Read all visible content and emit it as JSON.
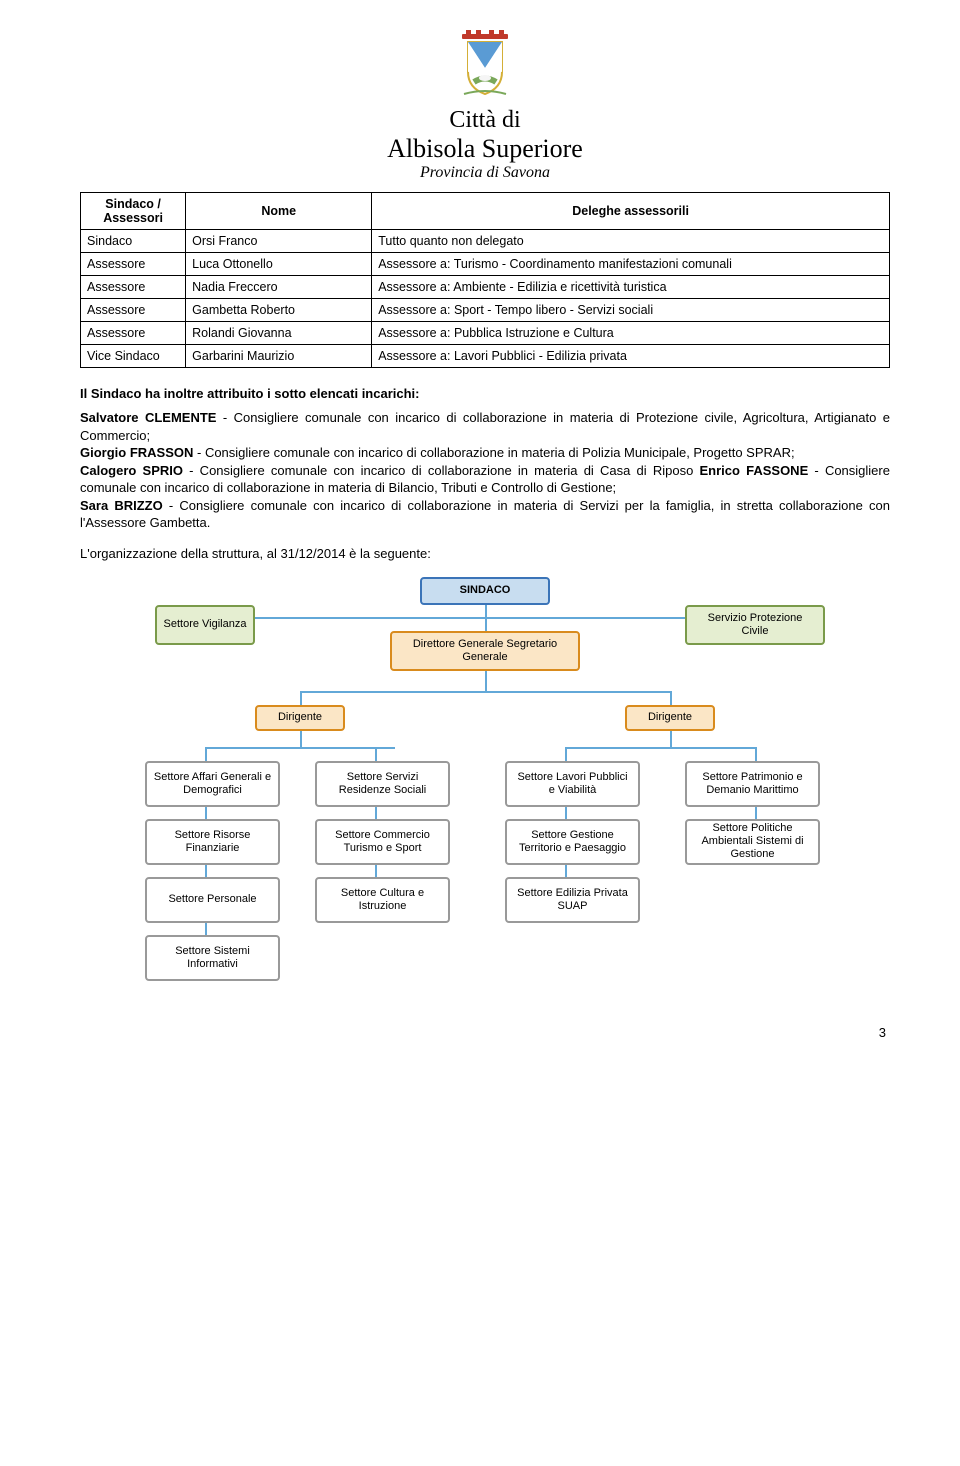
{
  "header": {
    "line1": "Città di",
    "line2": "Albisola Superiore",
    "province": "Provincia di Savona"
  },
  "colors": {
    "table_border": "#000000",
    "org_line": "#62a8d8",
    "org_top_border": "#3b74b8",
    "org_top_fill": "#c8ddf0",
    "org_service_border": "#7a9a4a",
    "org_service_fill": "#e5eed1",
    "org_role_border": "#d98b1d",
    "org_role_fill": "#fbe6c6",
    "org_sector_border": "#999999",
    "org_sector_fill": "#ffffff"
  },
  "table": {
    "headers": [
      "Sindaco / Assessori",
      "Nome",
      "Deleghe assessorili"
    ],
    "rows": [
      [
        "Sindaco",
        "Orsi Franco",
        "Tutto quanto non delegato"
      ],
      [
        "Assessore",
        "Luca Ottonello",
        "Assessore a: Turismo - Coordinamento manifestazioni comunali"
      ],
      [
        "Assessore",
        "Nadia Freccero",
        "Assessore a: Ambiente - Edilizia e ricettività turistica"
      ],
      [
        "Assessore",
        "Gambetta Roberto",
        "Assessore a: Sport - Tempo libero - Servizi sociali"
      ],
      [
        "Assessore",
        "Rolandi Giovanna",
        "Assessore a: Pubblica Istruzione e Cultura"
      ],
      [
        "Vice Sindaco",
        "Garbarini Maurizio",
        "Assessore a: Lavori Pubblici - Edilizia privata"
      ]
    ]
  },
  "incarichi": {
    "title": "Il Sindaco ha inoltre attribuito i sotto elencati incarichi:",
    "items": [
      {
        "name": "Salvatore CLEMENTE",
        "text": " - Consigliere comunale con incarico di collaborazione in materia di Protezione civile, Agricoltura, Artigianato e Commercio;"
      },
      {
        "name": "Giorgio FRASSON",
        "text": " - Consigliere comunale con incarico di collaborazione in materia di Polizia Municipale, Progetto SPRAR;"
      },
      {
        "name": "Calogero SPRIO",
        "text": " - Consigliere comunale con incarico di collaborazione in materia di Casa di Riposo "
      },
      {
        "name": "Enrico FASSONE",
        "text": " - Consigliere comunale con incarico di collaborazione in materia di Bilancio, Tributi e Controllo di Gestione;"
      },
      {
        "name": "Sara BRIZZO",
        "text": " - Consigliere comunale con incarico di collaborazione in materia di Servizi per la famiglia, in stretta collaborazione con l'Assessore Gambetta."
      }
    ]
  },
  "org_line": "L'organizzazione della struttura, al 31/12/2014 è la seguente:",
  "org": {
    "top": "SINDACO",
    "service_left": "Settore Vigilanza",
    "service_right": "Servizio Protezione Civile",
    "director": "Direttore Generale Segretario Generale",
    "dirigente": "Dirigente",
    "cols": [
      [
        "Settore Affari Generali e Demografici",
        "Settore Risorse Finanziarie",
        "Settore Personale",
        "Settore Sistemi Informativi"
      ],
      [
        "Settore Servizi Residenze Sociali",
        "Settore Commercio Turismo e Sport",
        "Settore Cultura e Istruzione"
      ],
      [
        "Settore Lavori Pubblici e Viabilità",
        "Settore Gestione Territorio e Paesaggio",
        "Settore Edilizia Privata SUAP"
      ],
      [
        "Settore Patrimonio e Demanio Marittimo",
        "Settore Politiche Ambientali Sistemi di Gestione"
      ]
    ]
  },
  "page_num": "3"
}
